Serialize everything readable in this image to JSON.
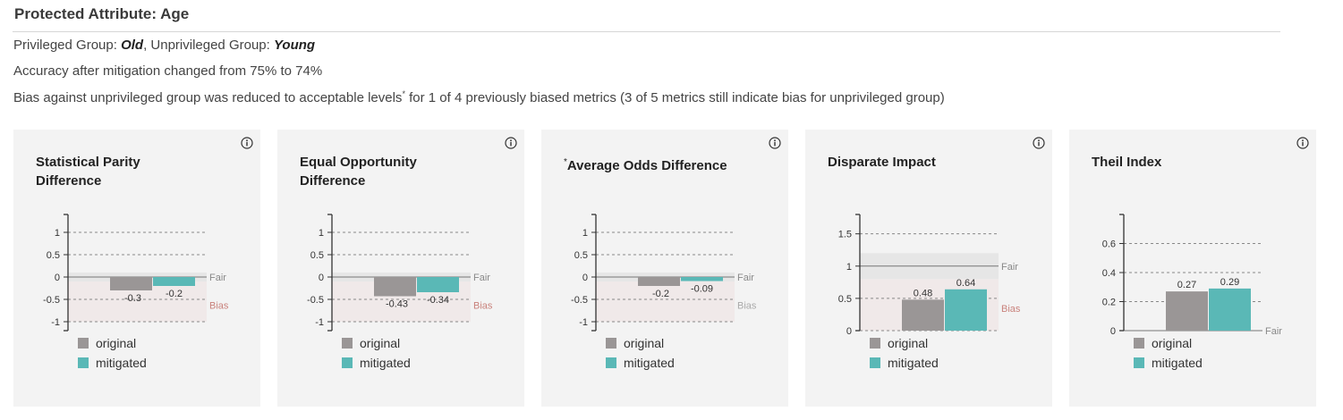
{
  "header": {
    "title": "Protected Attribute: Age",
    "privileged_label": "Privileged Group: ",
    "privileged_value": "Old",
    "unprivileged_label": ", Unprivileged Group: ",
    "unprivileged_value": "Young",
    "accuracy_text": "Accuracy after mitigation changed from 75% to 74%",
    "bias_text_a": "Bias against unprivileged group was reduced to acceptable levels",
    "bias_footnote_mark": "*",
    "bias_text_b": " for 1 of 4 previously biased metrics (3 of 5 metrics still indicate bias for unprivileged group)"
  },
  "legend": {
    "original": "original",
    "mitigated": "mitigated"
  },
  "colors": {
    "original": "#9a9696",
    "mitigated": "#5ab8b6",
    "fair": "#888888",
    "bias": "#c9827c",
    "bias_muted": "#aaaaaa"
  },
  "cards": [
    {
      "title": "Statistical Parity Difference",
      "marker": "",
      "chart_data": {
        "type": "bar",
        "categories": [
          "original",
          "mitigated"
        ],
        "values": [
          -0.3,
          -0.2
        ],
        "value_labels": [
          "-0.3",
          "-0.2"
        ],
        "yticks": [
          1,
          0.5,
          0,
          -0.5,
          -1
        ],
        "ytick_labels": [
          "1",
          "0.5",
          "0",
          "-0.5",
          "-1"
        ],
        "ylim": [
          -1.2,
          1.4
        ],
        "fair_value": 0,
        "fair_band": [
          -0.1,
          0.1
        ],
        "bias_band": [
          -1,
          -0.1
        ],
        "fair_label": "Fair",
        "bias_label": "Bias",
        "bias_active": true
      }
    },
    {
      "title": "Equal Opportunity Difference",
      "marker": "",
      "chart_data": {
        "type": "bar",
        "categories": [
          "original",
          "mitigated"
        ],
        "values": [
          -0.43,
          -0.34
        ],
        "value_labels": [
          "-0.43",
          "-0.34"
        ],
        "yticks": [
          1,
          0.5,
          0,
          -0.5,
          -1
        ],
        "ytick_labels": [
          "1",
          "0.5",
          "0",
          "-0.5",
          "-1"
        ],
        "ylim": [
          -1.2,
          1.4
        ],
        "fair_value": 0,
        "fair_band": [
          -0.1,
          0.1
        ],
        "bias_band": [
          -1,
          -0.1
        ],
        "fair_label": "Fair",
        "bias_label": "Bias",
        "bias_active": true
      }
    },
    {
      "title": "Average Odds Difference",
      "marker": "*",
      "chart_data": {
        "type": "bar",
        "categories": [
          "original",
          "mitigated"
        ],
        "values": [
          -0.2,
          -0.09
        ],
        "value_labels": [
          "-0.2",
          "-0.09"
        ],
        "yticks": [
          1,
          0.5,
          0,
          -0.5,
          -1
        ],
        "ytick_labels": [
          "1",
          "0.5",
          "0",
          "-0.5",
          "-1"
        ],
        "ylim": [
          -1.2,
          1.4
        ],
        "fair_value": 0,
        "fair_band": [
          -0.1,
          0.1
        ],
        "bias_band": [
          -1,
          -0.1
        ],
        "fair_label": "Fair",
        "bias_label": "Bias",
        "bias_active": false
      }
    },
    {
      "title": "Disparate Impact",
      "marker": "",
      "chart_data": {
        "type": "bar",
        "categories": [
          "original",
          "mitigated"
        ],
        "values": [
          0.48,
          0.64
        ],
        "value_labels": [
          "0.48",
          "0.64"
        ],
        "yticks": [
          1.5,
          1,
          0.5,
          0
        ],
        "ytick_labels": [
          "1.5",
          "1",
          "0.5",
          "0"
        ],
        "ylim": [
          0,
          1.8
        ],
        "fair_value": 1,
        "fair_band": [
          0.8,
          1.2
        ],
        "bias_band": [
          0,
          0.8
        ],
        "fair_label": "Fair",
        "bias_label": "Bias",
        "bias_active": true
      }
    },
    {
      "title": "Theil Index",
      "marker": "",
      "chart_data": {
        "type": "bar",
        "categories": [
          "original",
          "mitigated"
        ],
        "values": [
          0.27,
          0.29
        ],
        "value_labels": [
          "0.27",
          "0.29"
        ],
        "yticks": [
          0.6,
          0.4,
          0.2,
          0
        ],
        "ytick_labels": [
          "0.6",
          "0.4",
          "0.2",
          "0"
        ],
        "ylim": [
          0,
          0.8
        ],
        "fair_value": 0,
        "fair_band": null,
        "bias_band": null,
        "fair_label": "Fair",
        "bias_label": "",
        "bias_active": false
      }
    }
  ]
}
